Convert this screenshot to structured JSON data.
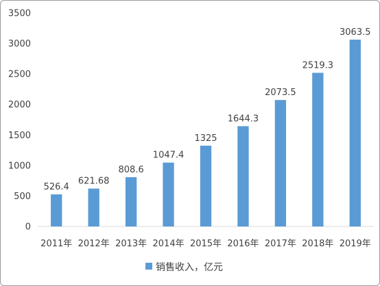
{
  "chart_data": {
    "type": "bar",
    "categories": [
      "2011年",
      "2012年",
      "2013年",
      "2014年",
      "2015年",
      "2016年",
      "2017年",
      "2018年",
      "2019年"
    ],
    "series": [
      {
        "name": "销售收入，亿元",
        "values": [
          526.4,
          621.68,
          808.6,
          1047.4,
          1325,
          1644.3,
          2073.5,
          2519.3,
          3063.5
        ],
        "labels": [
          "526.4",
          "621.68",
          "808.6",
          "1047.4",
          "1325",
          "1644.3",
          "2073.5",
          "2519.3",
          "3063.5"
        ]
      }
    ],
    "ylim": [
      0,
      3500
    ],
    "yticks": [
      0,
      500,
      1000,
      1500,
      2000,
      2500,
      3000,
      3500
    ],
    "color": "#5b9bd5",
    "grid": false,
    "legend": "bottom",
    "title": "",
    "xlabel": "",
    "ylabel": ""
  }
}
